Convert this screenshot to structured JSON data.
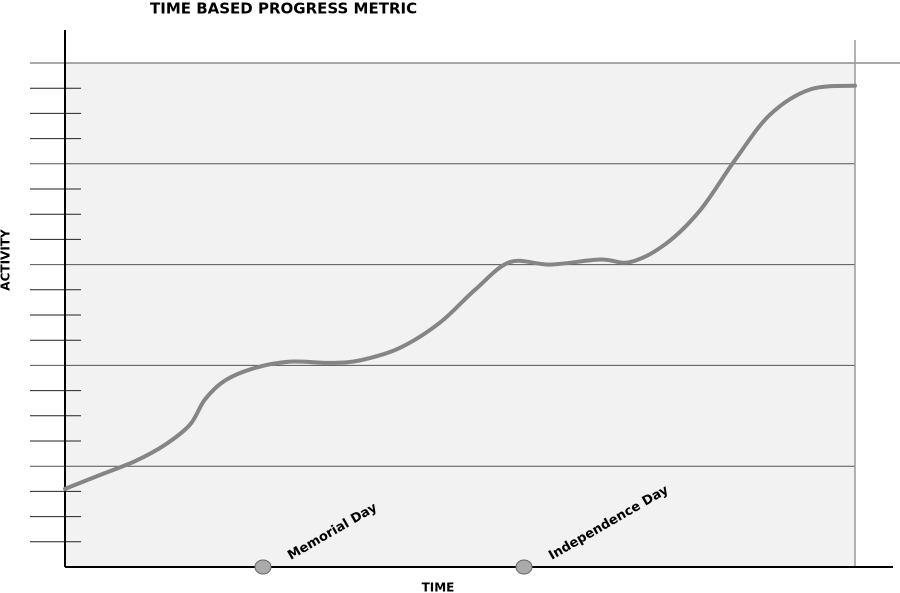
{
  "chart_data": {
    "type": "line",
    "title": "TIME BASED PROGRESS METRIC",
    "x_label": "TIME",
    "y_label": "ACTIVITY",
    "x": [
      0,
      3.5,
      7,
      10,
      12.5,
      14,
      16,
      19,
      22.5,
      26.5,
      29.5,
      33.5,
      37.5,
      41,
      44.5,
      48.5,
      53.5,
      56.5,
      60,
      63.5,
      67,
      70.5,
      74.5,
      79
    ],
    "series": [
      {
        "color": "#858585",
        "values": [
          3.1,
          3.65,
          4.2,
          4.85,
          5.65,
          6.65,
          7.4,
          7.9,
          8.15,
          8.1,
          8.2,
          8.7,
          9.7,
          11.0,
          12.1,
          12.0,
          12.2,
          12.1,
          12.8,
          14.15,
          16.15,
          17.95,
          18.95,
          19.1
        ]
      }
    ],
    "xlim": [
      0,
      79
    ],
    "ylim": [
      0,
      20
    ],
    "yticks": [
      1,
      2,
      3,
      4,
      5,
      6,
      7,
      8,
      9,
      10,
      11,
      12,
      13,
      14,
      15,
      16,
      17,
      18,
      19,
      20
    ],
    "grid_every": 4,
    "annotations": [
      {
        "text": "Memorial Day",
        "x": 19.8
      },
      {
        "text": "Independence Day",
        "x": 45.9
      }
    ]
  }
}
